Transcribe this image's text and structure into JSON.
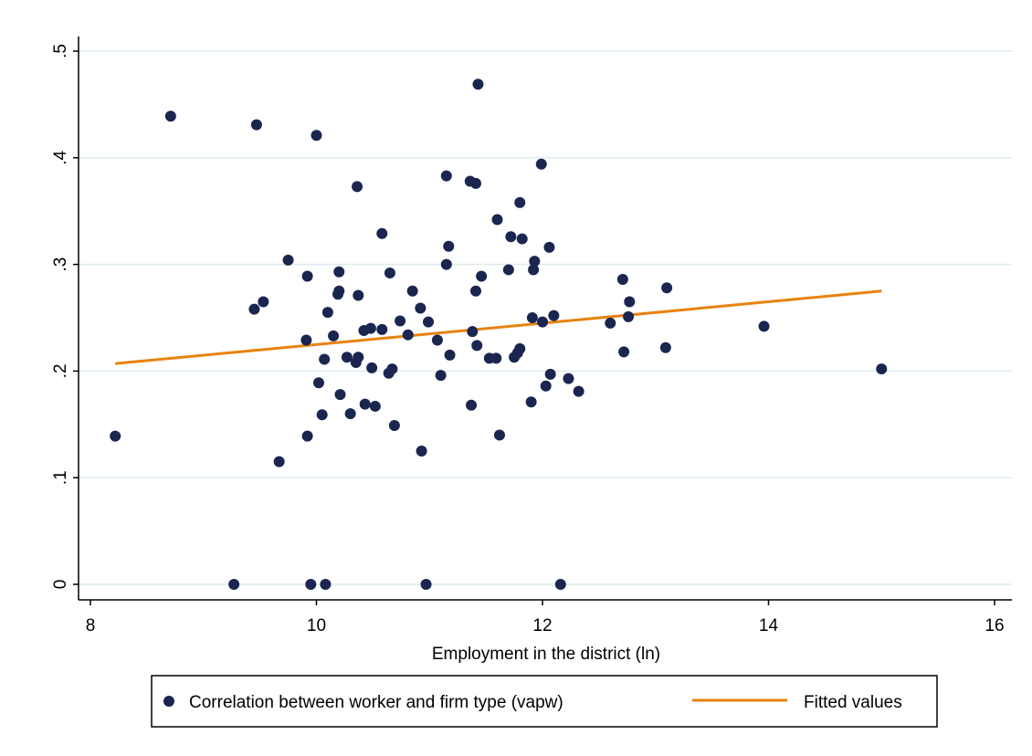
{
  "chart_data": {
    "type": "scatter",
    "title": "",
    "xlabel": "Employment in the district (ln)",
    "ylabel": "",
    "xlim": [
      8,
      16
    ],
    "ylim": [
      0,
      0.5
    ],
    "x_ticks": [
      8,
      10,
      12,
      14,
      16
    ],
    "x_tick_labels": [
      "8",
      "10",
      "12",
      "14",
      "16"
    ],
    "y_ticks": [
      0,
      0.1,
      0.2,
      0.3,
      0.4,
      0.5
    ],
    "y_tick_labels": [
      "0",
      ".1",
      ".2",
      ".3",
      ".4",
      ".5"
    ],
    "grid": "horizontal",
    "legend_position": "bottom",
    "colors": {
      "scatter": "#1a2650",
      "fit": "#e8820e",
      "grid": "#dceae9"
    },
    "series": [
      {
        "name": "Correlation between worker and firm type (vapw)",
        "kind": "scatter",
        "points": [
          [
            8.22,
            0.139
          ],
          [
            8.71,
            0.439
          ],
          [
            9.27,
            0.0
          ],
          [
            9.45,
            0.258
          ],
          [
            9.47,
            0.431
          ],
          [
            9.53,
            0.265
          ],
          [
            9.67,
            0.115
          ],
          [
            9.75,
            0.304
          ],
          [
            9.91,
            0.229
          ],
          [
            9.92,
            0.289
          ],
          [
            9.92,
            0.139
          ],
          [
            9.95,
            0.0
          ],
          [
            10.0,
            0.421
          ],
          [
            10.02,
            0.189
          ],
          [
            10.05,
            0.159
          ],
          [
            10.07,
            0.211
          ],
          [
            10.08,
            0.0
          ],
          [
            10.1,
            0.255
          ],
          [
            10.15,
            0.233
          ],
          [
            10.19,
            0.272
          ],
          [
            10.2,
            0.275
          ],
          [
            10.2,
            0.293
          ],
          [
            10.21,
            0.178
          ],
          [
            10.27,
            0.213
          ],
          [
            10.3,
            0.16
          ],
          [
            10.35,
            0.208
          ],
          [
            10.36,
            0.373
          ],
          [
            10.37,
            0.213
          ],
          [
            10.37,
            0.271
          ],
          [
            10.42,
            0.238
          ],
          [
            10.43,
            0.169
          ],
          [
            10.48,
            0.24
          ],
          [
            10.49,
            0.203
          ],
          [
            10.52,
            0.167
          ],
          [
            10.58,
            0.329
          ],
          [
            10.58,
            0.239
          ],
          [
            10.64,
            0.198
          ],
          [
            10.65,
            0.292
          ],
          [
            10.67,
            0.202
          ],
          [
            10.69,
            0.149
          ],
          [
            10.74,
            0.247
          ],
          [
            10.81,
            0.234
          ],
          [
            10.85,
            0.275
          ],
          [
            10.92,
            0.259
          ],
          [
            10.93,
            0.125
          ],
          [
            10.97,
            0.0
          ],
          [
            10.99,
            0.246
          ],
          [
            11.07,
            0.229
          ],
          [
            11.1,
            0.196
          ],
          [
            11.15,
            0.3
          ],
          [
            11.15,
            0.383
          ],
          [
            11.17,
            0.317
          ],
          [
            11.18,
            0.215
          ],
          [
            11.36,
            0.378
          ],
          [
            11.37,
            0.168
          ],
          [
            11.38,
            0.237
          ],
          [
            11.41,
            0.376
          ],
          [
            11.41,
            0.275
          ],
          [
            11.42,
            0.224
          ],
          [
            11.43,
            0.469
          ],
          [
            11.46,
            0.289
          ],
          [
            11.53,
            0.212
          ],
          [
            11.59,
            0.212
          ],
          [
            11.6,
            0.342
          ],
          [
            11.62,
            0.14
          ],
          [
            11.7,
            0.295
          ],
          [
            11.72,
            0.326
          ],
          [
            11.75,
            0.213
          ],
          [
            11.78,
            0.217
          ],
          [
            11.8,
            0.221
          ],
          [
            11.8,
            0.358
          ],
          [
            11.82,
            0.324
          ],
          [
            11.9,
            0.171
          ],
          [
            11.91,
            0.25
          ],
          [
            11.92,
            0.295
          ],
          [
            11.93,
            0.303
          ],
          [
            11.99,
            0.394
          ],
          [
            12.0,
            0.246
          ],
          [
            12.03,
            0.186
          ],
          [
            12.06,
            0.316
          ],
          [
            12.07,
            0.197
          ],
          [
            12.1,
            0.252
          ],
          [
            12.16,
            0.0
          ],
          [
            12.23,
            0.193
          ],
          [
            12.32,
            0.181
          ],
          [
            12.6,
            0.245
          ],
          [
            12.71,
            0.286
          ],
          [
            12.72,
            0.218
          ],
          [
            12.76,
            0.251
          ],
          [
            12.77,
            0.265
          ],
          [
            13.09,
            0.222
          ],
          [
            13.1,
            0.278
          ],
          [
            13.96,
            0.242
          ],
          [
            15.0,
            0.202
          ]
        ]
      },
      {
        "name": "Fitted values",
        "kind": "line",
        "points": [
          [
            8.22,
            0.207
          ],
          [
            15.0,
            0.275
          ]
        ]
      }
    ]
  }
}
